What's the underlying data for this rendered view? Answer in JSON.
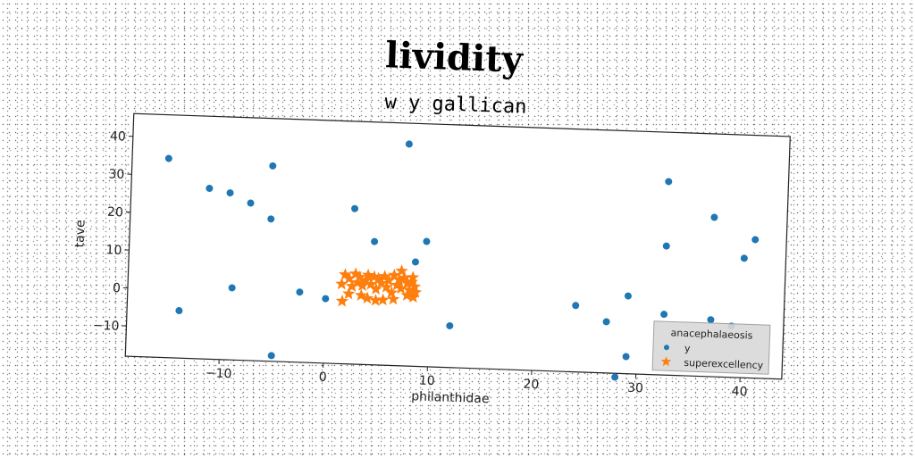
{
  "chart_data": {
    "type": "scatter",
    "title": "lividity",
    "subtitle": "w y gallican",
    "xlabel": "philanthidae",
    "ylabel": "tave",
    "xlim": [
      -19,
      44
    ],
    "ylim": [
      -18,
      46
    ],
    "xticks": [
      -10,
      0,
      10,
      20,
      30,
      40
    ],
    "yticks": [
      -10,
      0,
      10,
      20,
      30,
      40
    ],
    "grid": false,
    "legend": {
      "title": "anacephalaeosis",
      "placement": "lower-right"
    },
    "series": [
      {
        "name": "y",
        "marker": "circle",
        "color": "#1f77b4",
        "points": [
          [
            -15.5,
            34.5
          ],
          [
            -11.5,
            27
          ],
          [
            -9.5,
            26
          ],
          [
            -7.5,
            23.5
          ],
          [
            -5.5,
            33.5
          ],
          [
            -5.5,
            19.5
          ],
          [
            -9,
            1
          ],
          [
            -14,
            -5.5
          ],
          [
            -5,
            -16.5
          ],
          [
            -2.5,
            0.5
          ],
          [
            0,
            -1
          ],
          [
            2.5,
            23
          ],
          [
            4.5,
            14.5
          ],
          [
            7.5,
            40.5
          ],
          [
            9.5,
            15
          ],
          [
            8.5,
            9.5
          ],
          [
            12,
            -7
          ],
          [
            24,
            -0.5
          ],
          [
            27,
            -4.5
          ],
          [
            29,
            2.5
          ],
          [
            28,
            -19
          ],
          [
            29,
            -13.5
          ],
          [
            32.5,
            33
          ],
          [
            32.5,
            16
          ],
          [
            32.5,
            -2
          ],
          [
            37,
            24
          ],
          [
            37,
            -3
          ],
          [
            39,
            -4.5
          ],
          [
            40,
            13.5
          ],
          [
            41,
            18.5
          ]
        ]
      },
      {
        "name": "superexcellency",
        "marker": "star",
        "color": "#ff7f0e",
        "points": [
          [
            1.5,
            3
          ],
          [
            1.8,
            5.5
          ],
          [
            2.2,
            4.5
          ],
          [
            2.5,
            2.5
          ],
          [
            2.8,
            5.8
          ],
          [
            3,
            3.5
          ],
          [
            3.2,
            5
          ],
          [
            3.5,
            2.8
          ],
          [
            3.8,
            4.2
          ],
          [
            4,
            5.6
          ],
          [
            4.3,
            3.2
          ],
          [
            4.6,
            5.2
          ],
          [
            4.8,
            2
          ],
          [
            5,
            4.8
          ],
          [
            5.3,
            3.6
          ],
          [
            5.6,
            5.4
          ],
          [
            5.8,
            2.6
          ],
          [
            6,
            4.4
          ],
          [
            6.3,
            1.2
          ],
          [
            6.5,
            5.8
          ],
          [
            6.8,
            3.2
          ],
          [
            7,
            4.6
          ],
          [
            7.2,
            2.4
          ],
          [
            7.5,
            5.2
          ],
          [
            7.8,
            3.8
          ],
          [
            8,
            2
          ],
          [
            8.2,
            4.2
          ],
          [
            8.3,
            5.4
          ],
          [
            8.5,
            3
          ],
          [
            8.6,
            1.5
          ],
          [
            1.6,
            -1.5
          ],
          [
            2.2,
            0.5
          ],
          [
            4,
            -0.5
          ],
          [
            4.8,
            -1
          ],
          [
            5.5,
            -0.8
          ],
          [
            6.5,
            -0.5
          ],
          [
            7.2,
            7
          ],
          [
            7.8,
            0.6
          ],
          [
            8.4,
            0.2
          ],
          [
            3.4,
            0.2
          ]
        ]
      }
    ]
  }
}
